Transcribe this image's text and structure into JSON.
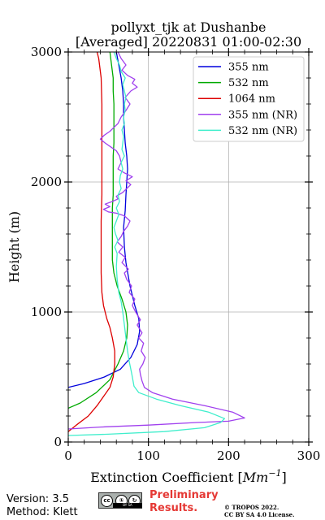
{
  "chart_data": {
    "type": "line",
    "title_line1": "pollyxt_tjk at Dushanbe",
    "title_line2": "[Averaged] 20220831 01:00-02:30",
    "xlabel": "Extinction Coefficient [",
    "xlabel_unit": "Mm",
    "xlabel_exp": "−1",
    "xlabel_end": "]",
    "ylabel": "Height (m)",
    "xlim": [
      0,
      300
    ],
    "ylim": [
      0,
      3000
    ],
    "x_ticks": [
      0,
      100,
      200,
      300
    ],
    "y_ticks": [
      0,
      1000,
      2000,
      3000
    ],
    "x_tick_labels": [
      "0",
      "100",
      "200",
      "300"
    ],
    "y_tick_labels": [
      "0",
      "1000",
      "2000",
      "3000"
    ],
    "grid": true,
    "legend_position": "top-right",
    "series": [
      {
        "name": "355 nm",
        "color": "#0000dd",
        "points": [
          [
            0,
            420
          ],
          [
            20,
            450
          ],
          [
            45,
            500
          ],
          [
            65,
            560
          ],
          [
            78,
            650
          ],
          [
            86,
            750
          ],
          [
            89,
            850
          ],
          [
            88,
            950
          ],
          [
            83,
            1050
          ],
          [
            77,
            1200
          ],
          [
            72,
            1380
          ],
          [
            70,
            1500
          ],
          [
            69,
            1650
          ],
          [
            71,
            1780
          ],
          [
            72,
            1900
          ],
          [
            73,
            2000
          ],
          [
            74,
            2100
          ],
          [
            73,
            2200
          ],
          [
            71,
            2300
          ],
          [
            70,
            2400
          ],
          [
            69,
            2500
          ],
          [
            69,
            2600
          ],
          [
            68,
            2700
          ],
          [
            66,
            2800
          ],
          [
            63,
            2900
          ],
          [
            60,
            3000
          ]
        ]
      },
      {
        "name": "532 nm",
        "color": "#00aa00",
        "points": [
          [
            0,
            260
          ],
          [
            15,
            300
          ],
          [
            35,
            380
          ],
          [
            52,
            480
          ],
          [
            62,
            600
          ],
          [
            69,
            700
          ],
          [
            73,
            800
          ],
          [
            74,
            900
          ],
          [
            72,
            1000
          ],
          [
            67,
            1100
          ],
          [
            61,
            1200
          ],
          [
            57,
            1300
          ],
          [
            55,
            1400
          ],
          [
            55,
            1500
          ],
          [
            55,
            1600
          ],
          [
            55,
            1700
          ],
          [
            55,
            1800
          ],
          [
            56,
            1900
          ],
          [
            56,
            2000
          ],
          [
            56,
            2100
          ],
          [
            56,
            2200
          ],
          [
            57,
            2300
          ],
          [
            57,
            2400
          ],
          [
            57,
            2500
          ],
          [
            57,
            2600
          ],
          [
            56,
            2700
          ],
          [
            56,
            2800
          ],
          [
            54,
            2900
          ],
          [
            52,
            3000
          ]
        ]
      },
      {
        "name": "1064 nm",
        "color": "#dd0000",
        "points": [
          [
            0,
            80
          ],
          [
            10,
            130
          ],
          [
            25,
            200
          ],
          [
            36,
            280
          ],
          [
            44,
            350
          ],
          [
            52,
            420
          ],
          [
            56,
            500
          ],
          [
            58,
            600
          ],
          [
            58,
            700
          ],
          [
            55,
            800
          ],
          [
            52,
            880
          ],
          [
            48,
            950
          ],
          [
            44,
            1050
          ],
          [
            42,
            1150
          ],
          [
            41,
            1300
          ],
          [
            41,
            1500
          ],
          [
            41,
            1700
          ],
          [
            42,
            1900
          ],
          [
            42,
            2000
          ],
          [
            42,
            2200
          ],
          [
            42,
            2400
          ],
          [
            42,
            2600
          ],
          [
            41,
            2800
          ],
          [
            38,
            2950
          ],
          [
            36,
            3000
          ]
        ]
      },
      {
        "name": "355 nm (NR)",
        "color": "#a040ee",
        "points": [
          [
            0,
            100
          ],
          [
            40,
            115
          ],
          [
            100,
            130
          ],
          [
            160,
            150
          ],
          [
            200,
            160
          ],
          [
            220,
            185
          ],
          [
            205,
            230
          ],
          [
            170,
            280
          ],
          [
            130,
            330
          ],
          [
            105,
            380
          ],
          [
            95,
            420
          ],
          [
            92,
            470
          ],
          [
            90,
            520
          ],
          [
            89,
            560
          ],
          [
            93,
            600
          ],
          [
            96,
            650
          ],
          [
            91,
            700
          ],
          [
            94,
            760
          ],
          [
            88,
            800
          ],
          [
            92,
            840
          ],
          [
            86,
            900
          ],
          [
            90,
            940
          ],
          [
            84,
            1000
          ],
          [
            80,
            1050
          ],
          [
            83,
            1100
          ],
          [
            76,
            1150
          ],
          [
            79,
            1200
          ],
          [
            73,
            1250
          ],
          [
            70,
            1300
          ],
          [
            75,
            1330
          ],
          [
            67,
            1380
          ],
          [
            71,
            1420
          ],
          [
            63,
            1460
          ],
          [
            68,
            1500
          ],
          [
            61,
            1540
          ],
          [
            66,
            1580
          ],
          [
            69,
            1620
          ],
          [
            74,
            1660
          ],
          [
            77,
            1700
          ],
          [
            70,
            1740
          ],
          [
            60,
            1760
          ],
          [
            50,
            1770
          ],
          [
            44,
            1790
          ],
          [
            52,
            1810
          ],
          [
            46,
            1830
          ],
          [
            55,
            1850
          ],
          [
            62,
            1870
          ],
          [
            60,
            1890
          ],
          [
            68,
            1920
          ],
          [
            73,
            1950
          ],
          [
            78,
            1980
          ],
          [
            72,
            2010
          ],
          [
            80,
            2040
          ],
          [
            70,
            2070
          ],
          [
            62,
            2100
          ],
          [
            66,
            2150
          ],
          [
            64,
            2200
          ],
          [
            60,
            2240
          ],
          [
            53,
            2270
          ],
          [
            46,
            2300
          ],
          [
            40,
            2330
          ],
          [
            45,
            2360
          ],
          [
            52,
            2390
          ],
          [
            57,
            2420
          ],
          [
            62,
            2450
          ],
          [
            66,
            2500
          ],
          [
            72,
            2550
          ],
          [
            77,
            2600
          ],
          [
            71,
            2650
          ],
          [
            78,
            2700
          ],
          [
            86,
            2730
          ],
          [
            80,
            2760
          ],
          [
            83,
            2790
          ],
          [
            74,
            2820
          ],
          [
            67,
            2860
          ],
          [
            72,
            2900
          ],
          [
            66,
            2950
          ],
          [
            62,
            3000
          ]
        ]
      },
      {
        "name": "532 nm (NR)",
        "color": "#40eecc",
        "points": [
          [
            0,
            50
          ],
          [
            50,
            60
          ],
          [
            120,
            80
          ],
          [
            170,
            110
          ],
          [
            190,
            150
          ],
          [
            195,
            180
          ],
          [
            175,
            230
          ],
          [
            140,
            280
          ],
          [
            110,
            330
          ],
          [
            88,
            380
          ],
          [
            82,
            430
          ],
          [
            80,
            500
          ],
          [
            78,
            560
          ],
          [
            76,
            620
          ],
          [
            74,
            700
          ],
          [
            72,
            800
          ],
          [
            70,
            900
          ],
          [
            68,
            1000
          ],
          [
            66,
            1080
          ],
          [
            63,
            1150
          ],
          [
            61,
            1250
          ],
          [
            60,
            1350
          ],
          [
            61,
            1450
          ],
          [
            58,
            1500
          ],
          [
            62,
            1550
          ],
          [
            59,
            1600
          ],
          [
            57,
            1650
          ],
          [
            60,
            1700
          ],
          [
            63,
            1750
          ],
          [
            60,
            1800
          ],
          [
            64,
            1850
          ],
          [
            62,
            1900
          ],
          [
            66,
            1950
          ],
          [
            64,
            2000
          ],
          [
            65,
            2050
          ],
          [
            68,
            2100
          ],
          [
            66,
            2150
          ],
          [
            70,
            2200
          ],
          [
            67,
            2250
          ],
          [
            68,
            2300
          ],
          [
            69,
            2350
          ],
          [
            67,
            2400
          ],
          [
            70,
            2450
          ],
          [
            69,
            2500
          ],
          [
            71,
            2550
          ],
          [
            70,
            2600
          ],
          [
            72,
            2650
          ],
          [
            70,
            2700
          ],
          [
            68,
            2750
          ],
          [
            71,
            2800
          ],
          [
            66,
            2850
          ],
          [
            64,
            2900
          ],
          [
            60,
            2950
          ],
          [
            57,
            3000
          ]
        ]
      }
    ]
  },
  "footer": {
    "version": "Version: 3.5",
    "method": "Method: Klett",
    "preliminary_line1": "Preliminary",
    "preliminary_line2": "Results.",
    "copyright_line1": "© TROPOS 2022.",
    "copyright_line2": "CC BY SA 4.0 License.",
    "license_badge_cc": "cc",
    "license_badge_by": "①",
    "license_badge_sa": "↻",
    "license_badge_strip": "BY     SA"
  }
}
